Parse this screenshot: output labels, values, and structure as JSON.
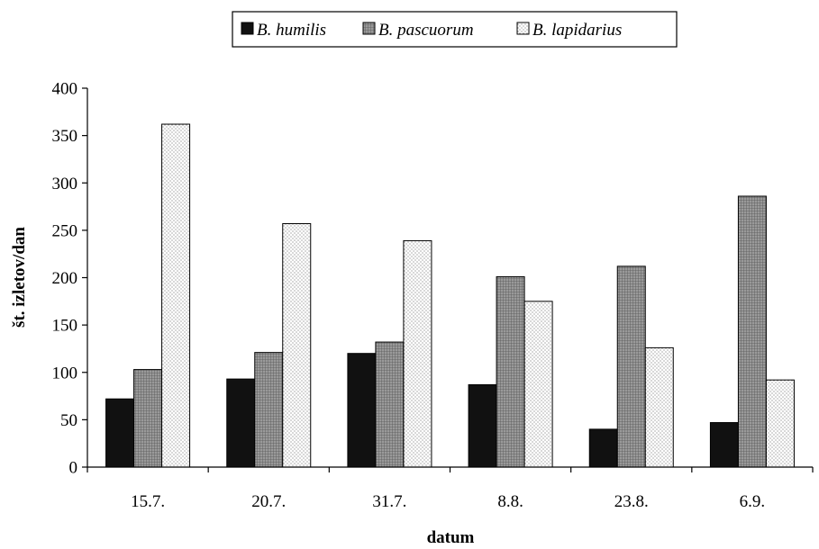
{
  "chart_data": {
    "type": "bar",
    "title": "",
    "xlabel": "datum",
    "ylabel": "št. izletov/dan",
    "categories": [
      "15.7.",
      "20.7.",
      "31.7.",
      "8.8.",
      "23.8.",
      "6.9."
    ],
    "series": [
      {
        "name": "B. humilis",
        "values": [
          72,
          93,
          120,
          87,
          40,
          47
        ],
        "fill": "#111111",
        "pattern": "solid"
      },
      {
        "name": "B. pascuorum",
        "values": [
          103,
          121,
          132,
          201,
          212,
          286
        ],
        "fill": "#888888",
        "pattern": "grid"
      },
      {
        "name": "B. lapidarius",
        "values": [
          362,
          257,
          239,
          175,
          126,
          92
        ],
        "fill": "#ffffff",
        "pattern": "dots"
      }
    ],
    "ylim": [
      0,
      400
    ],
    "yticks": [
      0,
      50,
      100,
      150,
      200,
      250,
      300,
      350,
      400
    ],
    "grid": false,
    "legend": "top-center"
  }
}
